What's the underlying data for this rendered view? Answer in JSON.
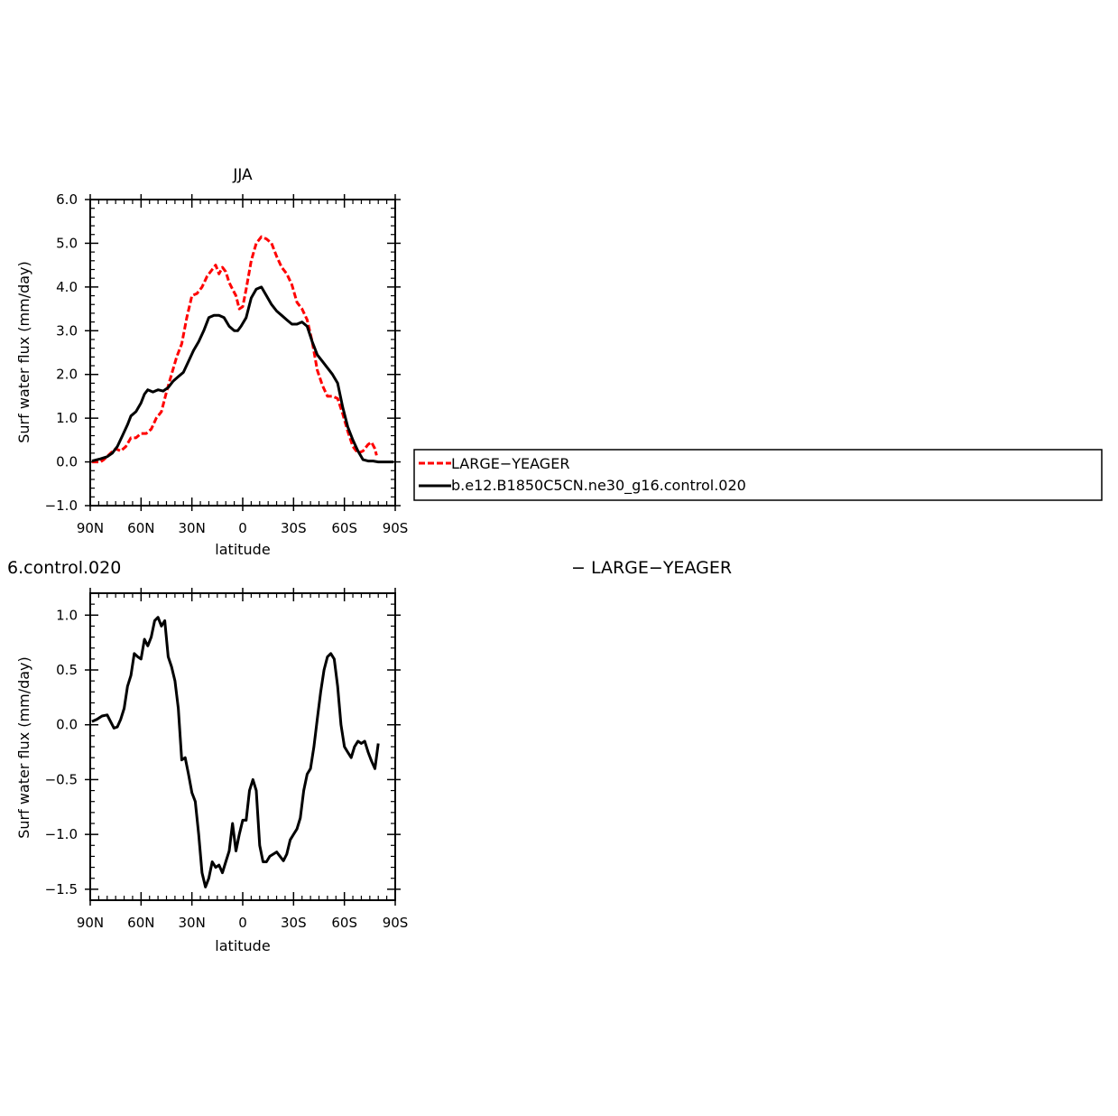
{
  "chart_data": [
    {
      "type": "line",
      "title": "JJA",
      "xlabel": "latitude",
      "ylabel": "Surf water flux (mm/day)",
      "xlim": [
        90,
        -90
      ],
      "ylim": [
        -1.0,
        6.0
      ],
      "xticks": [
        {
          "value": 90,
          "label": "90N"
        },
        {
          "value": 60,
          "label": "60N"
        },
        {
          "value": 30,
          "label": "30N"
        },
        {
          "value": 0,
          "label": "0"
        },
        {
          "value": -30,
          "label": "30S"
        },
        {
          "value": -60,
          "label": "60S"
        },
        {
          "value": -90,
          "label": "90S"
        }
      ],
      "yticks": [
        {
          "value": 6.0,
          "label": "6.0"
        },
        {
          "value": 5.0,
          "label": "5.0"
        },
        {
          "value": 4.0,
          "label": "4.0"
        },
        {
          "value": 3.0,
          "label": "3.0"
        },
        {
          "value": 2.0,
          "label": "2.0"
        },
        {
          "value": 1.0,
          "label": "1.0"
        },
        {
          "value": 0.0,
          "label": "0.0"
        },
        {
          "value": -1.0,
          "label": "−1.0"
        }
      ],
      "legend_position": "right",
      "series": [
        {
          "name": "LARGE−YEAGER",
          "color": "#ff0000",
          "dash": "dashed",
          "points": [
            [
              89,
              0.0
            ],
            [
              84,
              0.0
            ],
            [
              82,
              0.05
            ],
            [
              78,
              0.2
            ],
            [
              75,
              0.3
            ],
            [
              72,
              0.25
            ],
            [
              69,
              0.35
            ],
            [
              66,
              0.55
            ],
            [
              63,
              0.55
            ],
            [
              60,
              0.65
            ],
            [
              57,
              0.65
            ],
            [
              54,
              0.75
            ],
            [
              51,
              1.0
            ],
            [
              48,
              1.15
            ],
            [
              45,
              1.6
            ],
            [
              42,
              2.0
            ],
            [
              39,
              2.4
            ],
            [
              36,
              2.7
            ],
            [
              33,
              3.3
            ],
            [
              30,
              3.8
            ],
            [
              27,
              3.85
            ],
            [
              24,
              4.0
            ],
            [
              21,
              4.25
            ],
            [
              18,
              4.4
            ],
            [
              16,
              4.5
            ],
            [
              14,
              4.3
            ],
            [
              12,
              4.45
            ],
            [
              10,
              4.35
            ],
            [
              8,
              4.1
            ],
            [
              6,
              3.95
            ],
            [
              4,
              3.8
            ],
            [
              2,
              3.5
            ],
            [
              0,
              3.55
            ],
            [
              -2,
              3.95
            ],
            [
              -5,
              4.6
            ],
            [
              -8,
              5.0
            ],
            [
              -11,
              5.15
            ],
            [
              -14,
              5.1
            ],
            [
              -17,
              5.0
            ],
            [
              -20,
              4.7
            ],
            [
              -23,
              4.45
            ],
            [
              -26,
              4.3
            ],
            [
              -29,
              4.05
            ],
            [
              -32,
              3.65
            ],
            [
              -35,
              3.5
            ],
            [
              -38,
              3.25
            ],
            [
              -41,
              2.75
            ],
            [
              -44,
              2.1
            ],
            [
              -47,
              1.75
            ],
            [
              -50,
              1.5
            ],
            [
              -53,
              1.5
            ],
            [
              -56,
              1.45
            ],
            [
              -59,
              1.1
            ],
            [
              -62,
              0.7
            ],
            [
              -65,
              0.35
            ],
            [
              -68,
              0.2
            ],
            [
              -71,
              0.25
            ],
            [
              -74,
              0.4
            ],
            [
              -76,
              0.45
            ],
            [
              -78,
              0.3
            ],
            [
              -79,
              0.15
            ]
          ]
        },
        {
          "name": "b.e12.B1850C5CN.ne30_g16.control.020",
          "color": "#000000",
          "dash": "solid",
          "points": [
            [
              89,
              0.02
            ],
            [
              84,
              0.07
            ],
            [
              80,
              0.12
            ],
            [
              77,
              0.2
            ],
            [
              74,
              0.35
            ],
            [
              71,
              0.6
            ],
            [
              68,
              0.85
            ],
            [
              66,
              1.05
            ],
            [
              63,
              1.15
            ],
            [
              60,
              1.35
            ],
            [
              58,
              1.55
            ],
            [
              56,
              1.65
            ],
            [
              53,
              1.6
            ],
            [
              50,
              1.65
            ],
            [
              47,
              1.62
            ],
            [
              44,
              1.7
            ],
            [
              41,
              1.85
            ],
            [
              38,
              1.95
            ],
            [
              35,
              2.05
            ],
            [
              32,
              2.3
            ],
            [
              29,
              2.55
            ],
            [
              26,
              2.75
            ],
            [
              23,
              3.0
            ],
            [
              20,
              3.3
            ],
            [
              17,
              3.35
            ],
            [
              14,
              3.35
            ],
            [
              11,
              3.3
            ],
            [
              8,
              3.1
            ],
            [
              5,
              3.0
            ],
            [
              3,
              3.0
            ],
            [
              1,
              3.1
            ],
            [
              -2,
              3.3
            ],
            [
              -5,
              3.75
            ],
            [
              -8,
              3.95
            ],
            [
              -11,
              4.0
            ],
            [
              -14,
              3.8
            ],
            [
              -17,
              3.6
            ],
            [
              -20,
              3.45
            ],
            [
              -23,
              3.35
            ],
            [
              -26,
              3.25
            ],
            [
              -29,
              3.15
            ],
            [
              -32,
              3.15
            ],
            [
              -35,
              3.2
            ],
            [
              -38,
              3.1
            ],
            [
              -41,
              2.75
            ],
            [
              -44,
              2.45
            ],
            [
              -47,
              2.3
            ],
            [
              -50,
              2.15
            ],
            [
              -53,
              2.0
            ],
            [
              -56,
              1.8
            ],
            [
              -59,
              1.25
            ],
            [
              -62,
              0.8
            ],
            [
              -65,
              0.5
            ],
            [
              -68,
              0.25
            ],
            [
              -71,
              0.05
            ],
            [
              -74,
              0.02
            ],
            [
              -77,
              0.02
            ],
            [
              -80,
              0.0
            ],
            [
              -85,
              0.0
            ],
            [
              -89,
              0.0
            ]
          ]
        }
      ]
    },
    {
      "type": "line",
      "title": "",
      "xlabel": "latitude",
      "ylabel": "Surf water flux (mm/day)",
      "xlim": [
        90,
        -90
      ],
      "ylim": [
        -1.6,
        1.2
      ],
      "xticks": [
        {
          "value": 90,
          "label": "90N"
        },
        {
          "value": 60,
          "label": "60N"
        },
        {
          "value": 30,
          "label": "30N"
        },
        {
          "value": 0,
          "label": "0"
        },
        {
          "value": -30,
          "label": "30S"
        },
        {
          "value": -60,
          "label": "60S"
        },
        {
          "value": -90,
          "label": "90S"
        }
      ],
      "yticks": [
        {
          "value": 1.0,
          "label": "1.0"
        },
        {
          "value": 0.5,
          "label": "0.5"
        },
        {
          "value": 0.0,
          "label": "0.0"
        },
        {
          "value": -0.5,
          "label": "−0.5"
        },
        {
          "value": -1.0,
          "label": "−1.0"
        },
        {
          "value": -1.5,
          "label": "−1.5"
        }
      ],
      "series": [
        {
          "name": "",
          "color": "#000000",
          "dash": "solid",
          "points": [
            [
              89,
              0.03
            ],
            [
              86,
              0.05
            ],
            [
              83,
              0.08
            ],
            [
              80,
              0.09
            ],
            [
              78,
              0.03
            ],
            [
              76,
              -0.03
            ],
            [
              74,
              -0.02
            ],
            [
              72,
              0.05
            ],
            [
              70,
              0.15
            ],
            [
              68,
              0.35
            ],
            [
              66,
              0.45
            ],
            [
              64,
              0.65
            ],
            [
              62,
              0.62
            ],
            [
              60,
              0.6
            ],
            [
              58,
              0.78
            ],
            [
              56,
              0.72
            ],
            [
              54,
              0.8
            ],
            [
              52,
              0.95
            ],
            [
              50,
              0.98
            ],
            [
              48,
              0.9
            ],
            [
              46,
              0.95
            ],
            [
              44,
              0.62
            ],
            [
              42,
              0.53
            ],
            [
              40,
              0.4
            ],
            [
              38,
              0.15
            ],
            [
              36,
              -0.32
            ],
            [
              34,
              -0.3
            ],
            [
              32,
              -0.45
            ],
            [
              30,
              -0.62
            ],
            [
              28,
              -0.7
            ],
            [
              26,
              -1.0
            ],
            [
              24,
              -1.35
            ],
            [
              22,
              -1.48
            ],
            [
              20,
              -1.4
            ],
            [
              18,
              -1.25
            ],
            [
              16,
              -1.3
            ],
            [
              14,
              -1.28
            ],
            [
              12,
              -1.35
            ],
            [
              10,
              -1.25
            ],
            [
              8,
              -1.15
            ],
            [
              6,
              -0.9
            ],
            [
              4,
              -1.15
            ],
            [
              2,
              -1.0
            ],
            [
              0,
              -0.87
            ],
            [
              -2,
              -0.87
            ],
            [
              -4,
              -0.6
            ],
            [
              -6,
              -0.5
            ],
            [
              -8,
              -0.6
            ],
            [
              -10,
              -1.1
            ],
            [
              -12,
              -1.25
            ],
            [
              -14,
              -1.25
            ],
            [
              -16,
              -1.2
            ],
            [
              -18,
              -1.18
            ],
            [
              -20,
              -1.16
            ],
            [
              -22,
              -1.2
            ],
            [
              -24,
              -1.24
            ],
            [
              -26,
              -1.18
            ],
            [
              -28,
              -1.05
            ],
            [
              -30,
              -1.0
            ],
            [
              -32,
              -0.95
            ],
            [
              -34,
              -0.85
            ],
            [
              -36,
              -0.6
            ],
            [
              -38,
              -0.45
            ],
            [
              -40,
              -0.4
            ],
            [
              -42,
              -0.2
            ],
            [
              -44,
              0.05
            ],
            [
              -46,
              0.3
            ],
            [
              -48,
              0.5
            ],
            [
              -50,
              0.62
            ],
            [
              -52,
              0.65
            ],
            [
              -54,
              0.6
            ],
            [
              -56,
              0.35
            ],
            [
              -58,
              0.0
            ],
            [
              -60,
              -0.2
            ],
            [
              -62,
              -0.25
            ],
            [
              -64,
              -0.3
            ],
            [
              -66,
              -0.2
            ],
            [
              -68,
              -0.15
            ],
            [
              -70,
              -0.17
            ],
            [
              -72,
              -0.15
            ],
            [
              -74,
              -0.25
            ],
            [
              -76,
              -0.33
            ],
            [
              -78,
              -0.4
            ],
            [
              -80,
              -0.17
            ]
          ]
        }
      ]
    }
  ],
  "legend": {
    "entries": [
      {
        "label": "LARGE−YEAGER",
        "color": "#ff0000",
        "dash": "dashed"
      },
      {
        "label": "b.e12.B1850C5CN.ne30_g16.control.020",
        "color": "#000000",
        "dash": "solid"
      }
    ]
  },
  "fragments": {
    "left_text": "6.control.020",
    "right_text": "− LARGE−YEAGER"
  }
}
